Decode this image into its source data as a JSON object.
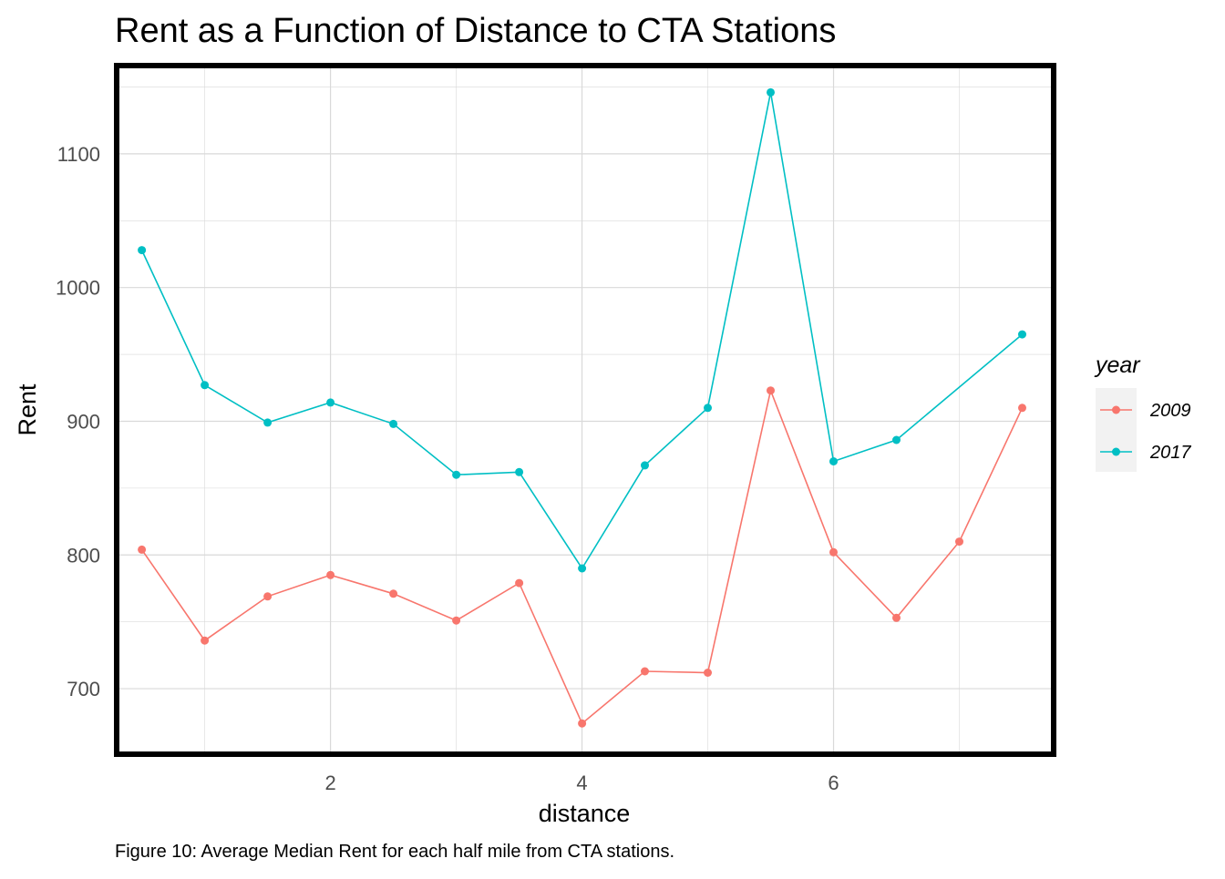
{
  "chart_data": {
    "type": "line",
    "title": "Rent as a Function of Distance to CTA Stations",
    "xlabel": "distance",
    "ylabel": "Rent",
    "caption": "Figure 10: Average Median Rent for each half mile from CTA stations.",
    "xlim": [
      0.3,
      7.75
    ],
    "ylim": [
      651,
      1166
    ],
    "x_ticks": [
      2,
      4,
      6
    ],
    "x_tick_labels": [
      "2",
      "4",
      "6"
    ],
    "y_ticks": [
      700,
      800,
      900,
      1000,
      1100
    ],
    "y_tick_labels": [
      "700",
      "800",
      "900",
      "1000",
      "1100"
    ],
    "grid": true,
    "legend": {
      "title": "year",
      "position": "right"
    },
    "x": [
      0.5,
      1,
      1.5,
      2,
      2.5,
      3,
      3.5,
      4,
      4.5,
      5,
      5.5,
      6,
      6.5,
      7,
      7.5
    ],
    "series": [
      {
        "name": "2009",
        "color": "#f8766d",
        "values": [
          804,
          736,
          769,
          785,
          771,
          751,
          779,
          674,
          713,
          712,
          923,
          802,
          753,
          810,
          910
        ]
      },
      {
        "name": "2017",
        "color": "#00bfc4",
        "values": [
          1028,
          927,
          899,
          914,
          898,
          860,
          862,
          790,
          867,
          910,
          1146,
          870,
          886,
          null,
          965
        ]
      }
    ]
  },
  "colors": {
    "grid": "#d9d9d9",
    "panel_border": "#000000",
    "legend_key_bg": "#f2f2f2",
    "tick_text": "#4d4d4d"
  }
}
